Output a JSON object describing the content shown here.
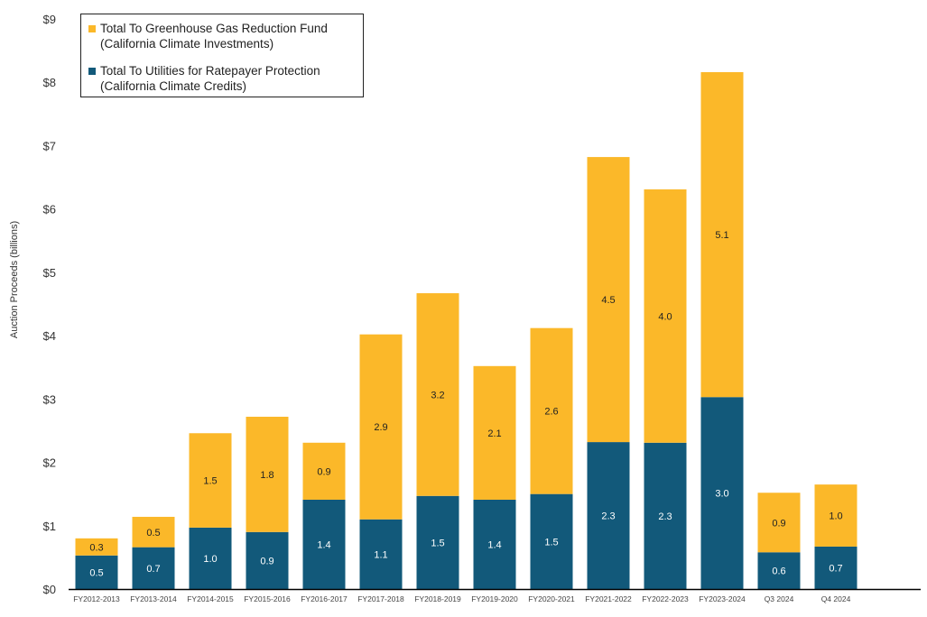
{
  "chart_data": {
    "type": "bar",
    "stacked": true,
    "ylabel": "Auction Proceeds (billions)",
    "ylim": [
      0,
      9
    ],
    "yticks": [
      "$0",
      "$1",
      "$2",
      "$3",
      "$4",
      "$5",
      "$6",
      "$7",
      "$8",
      "$9"
    ],
    "grid": false,
    "legend_position": "top-left",
    "categories": [
      "FY2012-2013",
      "FY2013-2014",
      "FY2014-2015",
      "FY2015-2016",
      "FY2016-2017",
      "FY2017-2018",
      "FY2018-2019",
      "FY2019-2020",
      "FY2020-2021",
      "FY2021-2022",
      "FY2022-2023",
      "FY2023-2024",
      "Q3 2024",
      "Q4 2024"
    ],
    "series": [
      {
        "name": "Total To Utilities for Ratepayer Protection (California Climate Credits)",
        "legend_lines": [
          "Total To Utilities for Ratepayer Protection",
          "(California Climate Credits)"
        ],
        "color": "#12597a",
        "values": [
          0.53,
          0.66,
          0.97,
          0.9,
          1.41,
          1.1,
          1.47,
          1.41,
          1.5,
          2.32,
          2.31,
          3.03,
          0.58,
          0.67
        ],
        "labels": [
          "0.5",
          "0.7",
          "1.0",
          "0.9",
          "1.4",
          "1.1",
          "1.5",
          "1.4",
          "1.5",
          "2.3",
          "2.3",
          "3.0",
          "0.6",
          "0.7"
        ]
      },
      {
        "name": "Total To Greenhouse Gas Reduction Fund (California Climate Investments)",
        "legend_lines": [
          "Total To Greenhouse Gas Reduction Fund",
          "(California Climate Investments)"
        ],
        "color": "#fbb829",
        "values": [
          0.27,
          0.48,
          1.49,
          1.82,
          0.9,
          2.92,
          3.2,
          2.11,
          2.62,
          4.5,
          4.0,
          5.13,
          0.94,
          0.98
        ],
        "labels": [
          "0.3",
          "0.5",
          "1.5",
          "1.8",
          "0.9",
          "2.9",
          "3.2",
          "2.1",
          "2.6",
          "4.5",
          "4.0",
          "5.1",
          "0.9",
          "1.0"
        ]
      }
    ]
  }
}
